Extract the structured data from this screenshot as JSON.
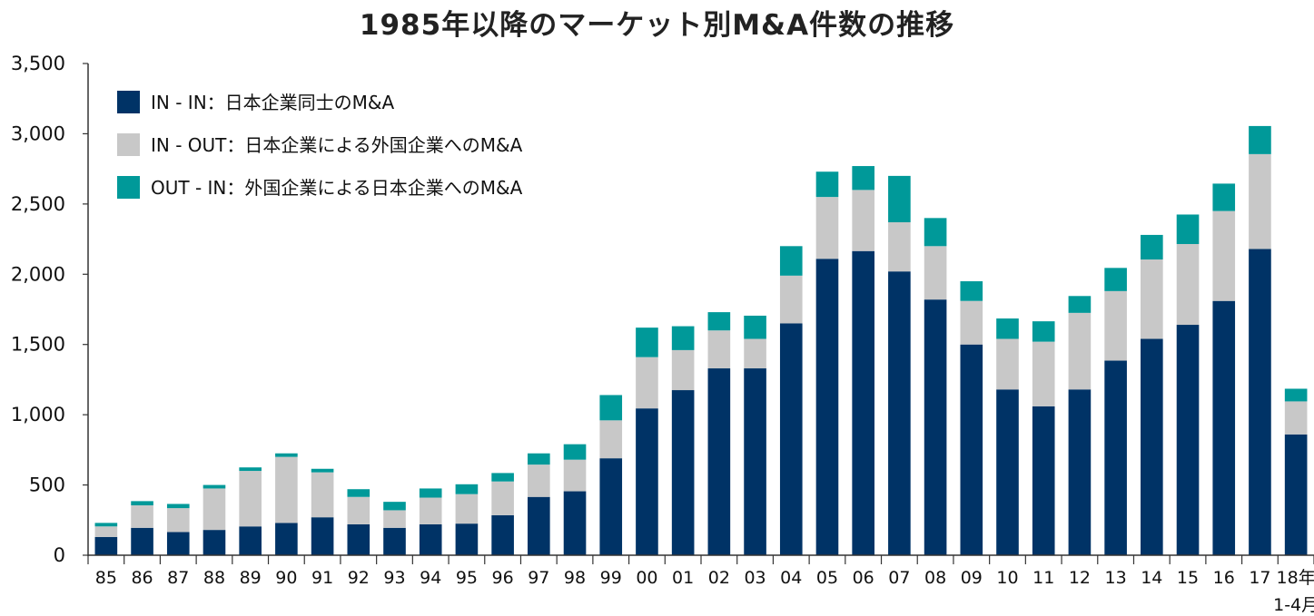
{
  "chart_data": {
    "type": "bar",
    "stacked": true,
    "title": "1985年以降のマーケット別M&A件数の推移",
    "categories": [
      "85",
      "86",
      "87",
      "88",
      "89",
      "90",
      "91",
      "92",
      "93",
      "94",
      "95",
      "96",
      "97",
      "98",
      "99",
      "00",
      "01",
      "02",
      "03",
      "04",
      "05",
      "06",
      "07",
      "08",
      "09",
      "10",
      "11",
      "12",
      "13",
      "14",
      "15",
      "16",
      "17",
      "18年"
    ],
    "last_category_note": "1-4月",
    "ylim": [
      0,
      3500
    ],
    "yticks": [
      "0",
      "500",
      "1,000",
      "1,500",
      "2,000",
      "2,500",
      "3,000",
      "3,500"
    ],
    "ytick_values": [
      0,
      500,
      1000,
      1500,
      2000,
      2500,
      3000,
      3500
    ],
    "legend_position": "top-left",
    "series": [
      {
        "name": "IN - IN：日本企業同士のM&A",
        "color": "#003366",
        "values": [
          130,
          195,
          165,
          180,
          205,
          230,
          270,
          220,
          195,
          220,
          225,
          285,
          415,
          455,
          690,
          1045,
          1175,
          1330,
          1330,
          1650,
          2110,
          2165,
          2020,
          1820,
          1500,
          1180,
          1060,
          1180,
          1385,
          1540,
          1640,
          1810,
          2180,
          860
        ]
      },
      {
        "name": "IN - OUT：日本企業による外国企業へのM&A",
        "color": "#c8c8c8",
        "values": [
          75,
          160,
          170,
          295,
          395,
          470,
          320,
          195,
          125,
          190,
          210,
          240,
          230,
          225,
          270,
          365,
          285,
          270,
          210,
          340,
          440,
          435,
          350,
          380,
          310,
          360,
          460,
          545,
          495,
          565,
          575,
          640,
          675,
          235
        ]
      },
      {
        "name": "OUT - IN：外国企業による日本企業へのM&A",
        "color": "#009999",
        "values": [
          25,
          30,
          30,
          25,
          25,
          25,
          25,
          55,
          60,
          65,
          70,
          60,
          80,
          110,
          180,
          210,
          170,
          130,
          165,
          210,
          180,
          170,
          330,
          200,
          140,
          145,
          145,
          120,
          165,
          175,
          210,
          195,
          200,
          90
        ]
      }
    ]
  }
}
